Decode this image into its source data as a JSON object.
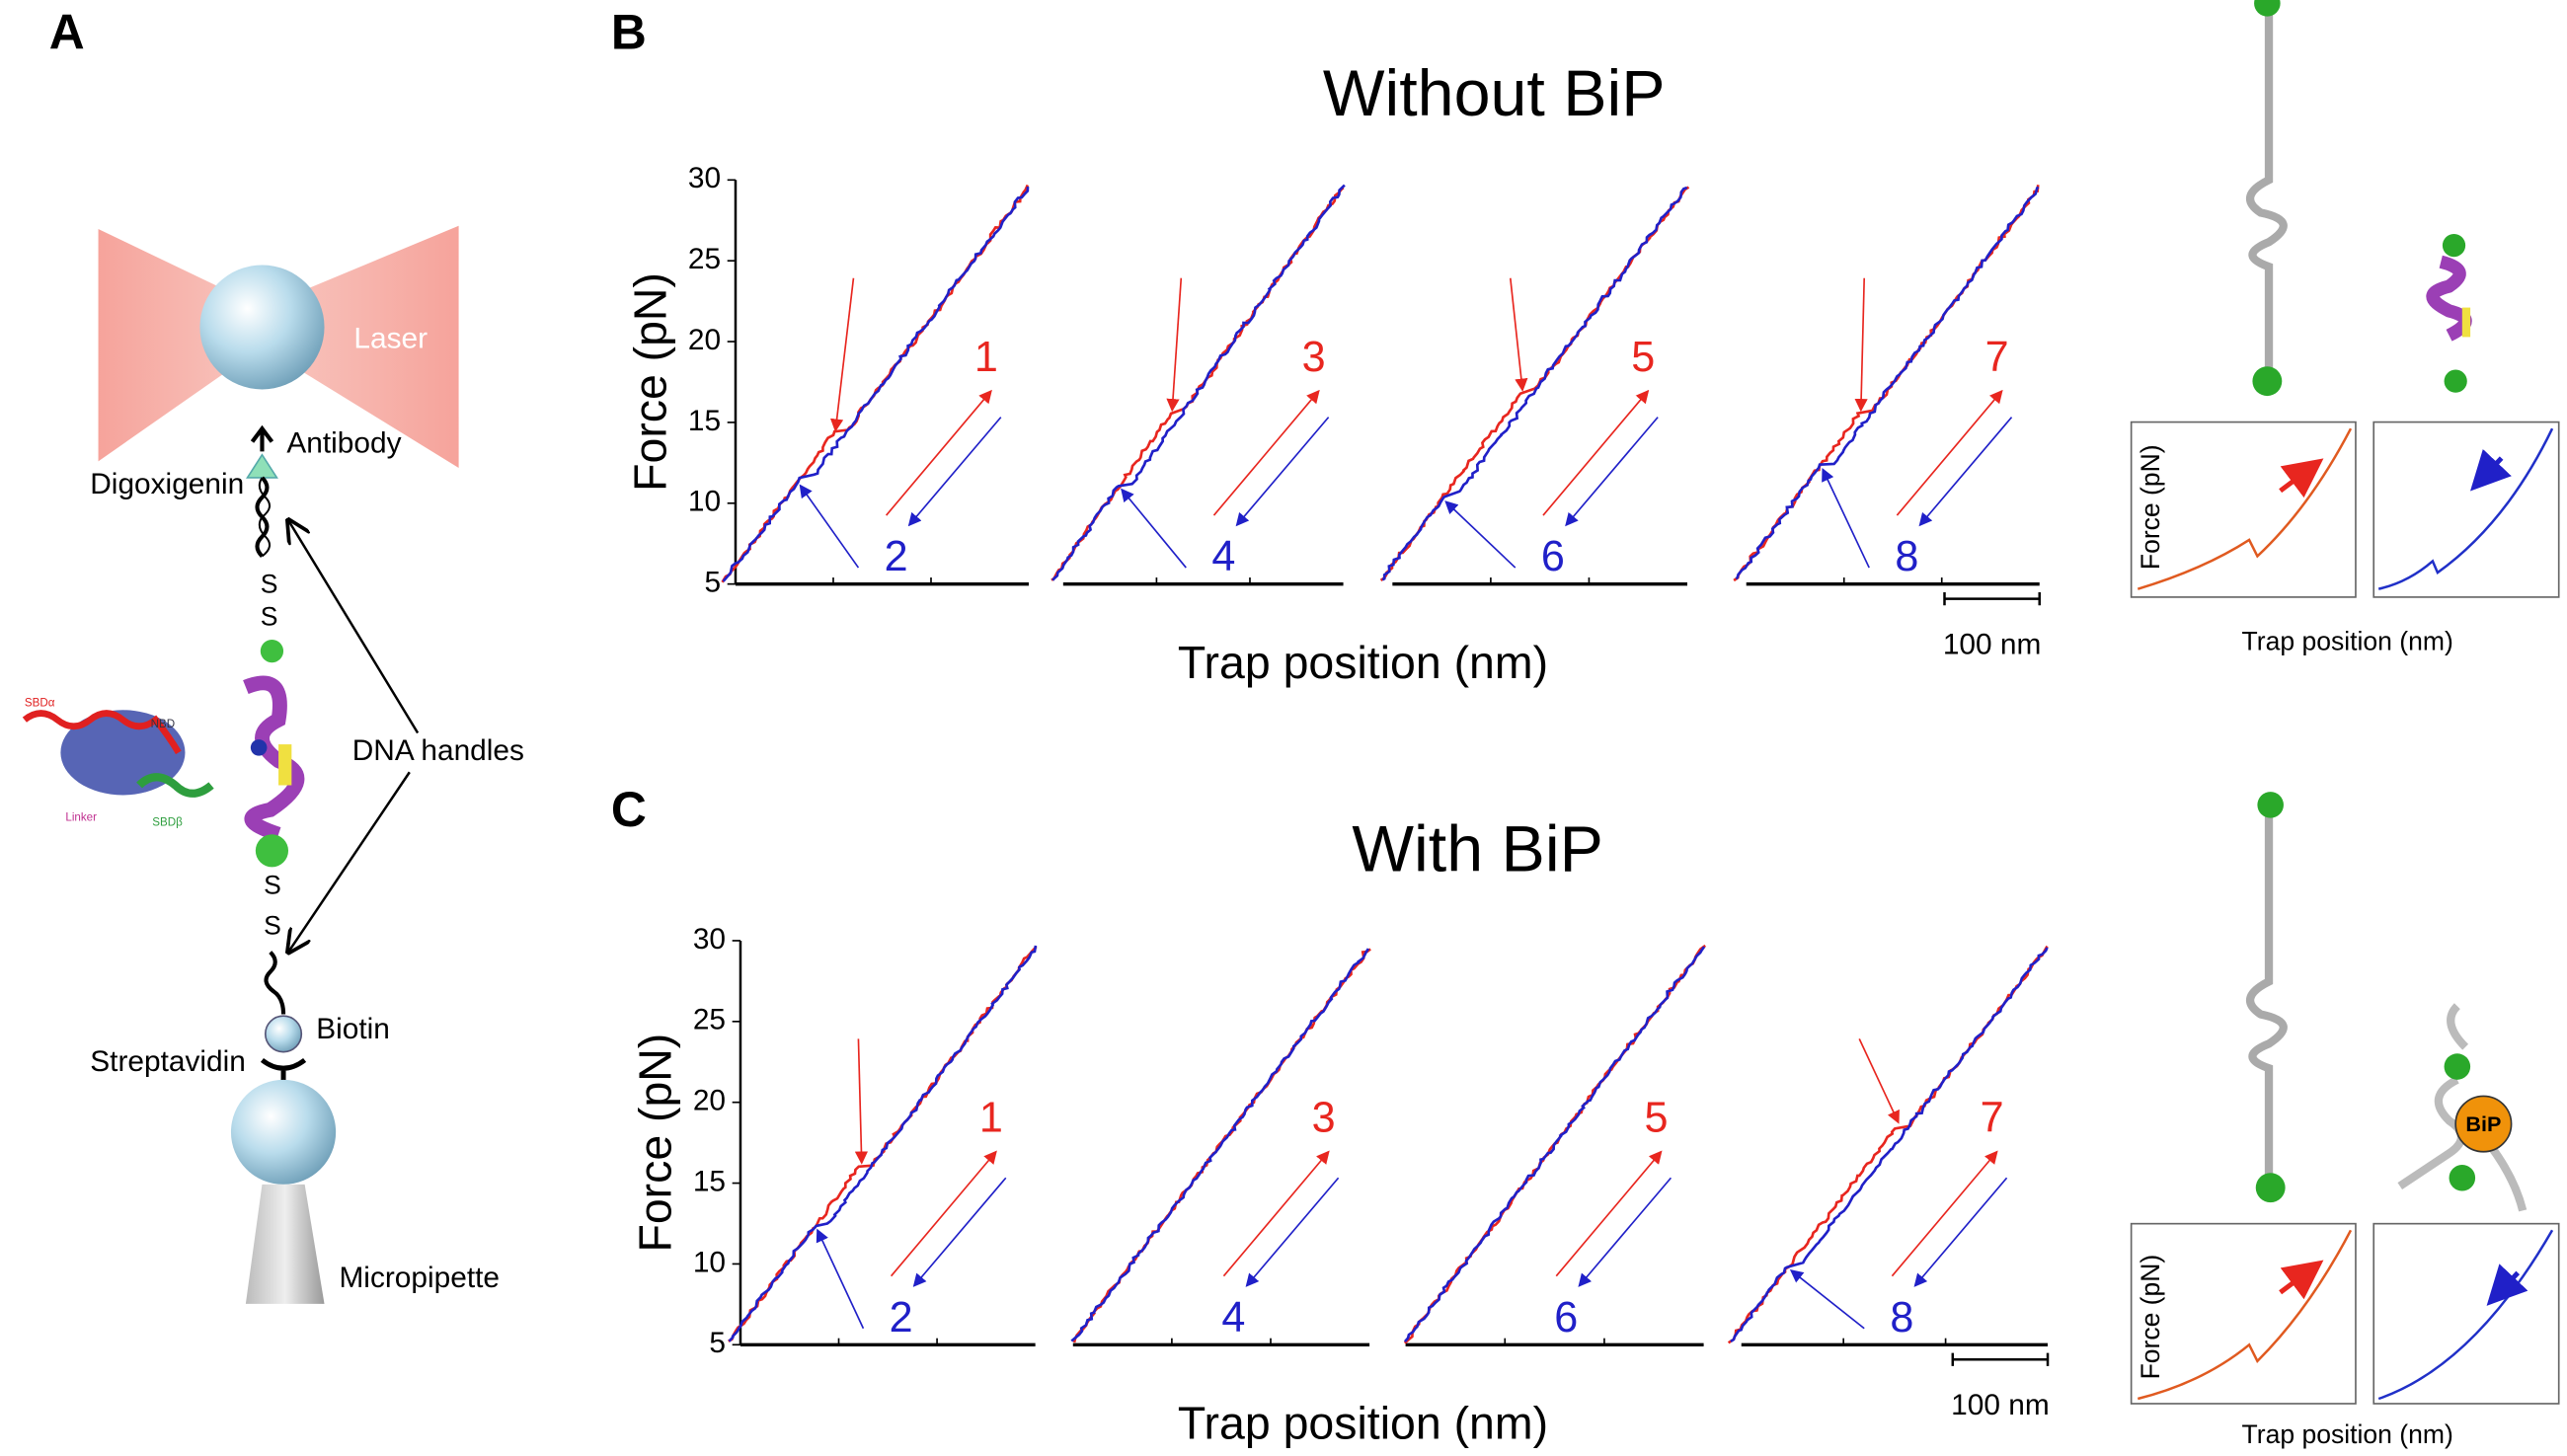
{
  "panel_labels": [
    "A",
    "B",
    "C"
  ],
  "panel_a": {
    "laser": "Laser",
    "antibody": "Antibody",
    "digoxigenin": "Digoxigenin",
    "dna_handles": "DNA handles",
    "biotin": "Biotin",
    "streptavidin": "Streptavidin",
    "micropipette": "Micropipette",
    "disulfide": "S",
    "protein_parts": [
      "SBDα",
      "NBD",
      "Linker",
      "SBDβ"
    ]
  },
  "panel_b": {
    "title": "Without BiP",
    "y_label": "Force (pN)",
    "x_label": "Trap position (nm)",
    "yticks": [
      5,
      10,
      15,
      20,
      25,
      30
    ],
    "scale_bar": "100 nm",
    "cycles": [
      [
        1,
        2
      ],
      [
        3,
        4
      ],
      [
        5,
        6
      ],
      [
        7,
        8
      ]
    ]
  },
  "panel_c": {
    "title": "With BiP",
    "y_label": "Force (pN)",
    "x_label": "Trap position (nm)",
    "yticks": [
      5,
      10,
      15,
      20,
      25,
      30
    ],
    "scale_bar": "100 nm",
    "cycles": [
      [
        1,
        2
      ],
      [
        3,
        4
      ],
      [
        5,
        6
      ],
      [
        7,
        8
      ]
    ]
  },
  "insets": {
    "y_label": "Force (pN)",
    "x_label": "Trap position (nm)",
    "bip": "BiP"
  }
}
